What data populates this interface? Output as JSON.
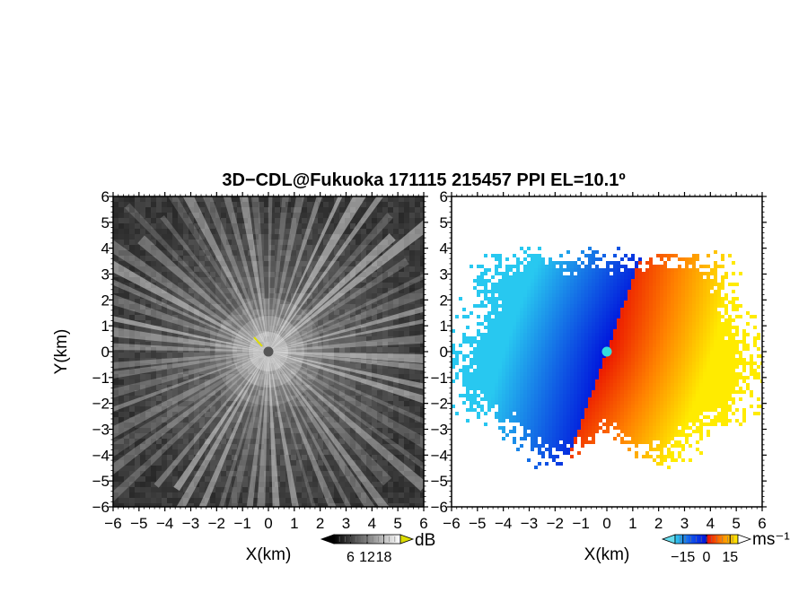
{
  "chart_data": [
    {
      "type": "heatmap",
      "panel": "reflectivity",
      "title": "3D−CDL@Fukuoka 171115 215457 PPI EL=10.1º",
      "xlabel": "X(km)",
      "ylabel": "Y(km)",
      "xlim": [
        -6,
        6
      ],
      "ylim": [
        -6,
        6
      ],
      "x_ticks": [
        -6,
        -5,
        -4,
        -3,
        -2,
        -1,
        0,
        1,
        2,
        3,
        4,
        5,
        6
      ],
      "y_ticks": [
        -6,
        -5,
        -4,
        -3,
        -2,
        -1,
        0,
        1,
        2,
        3,
        4,
        5,
        6
      ],
      "colorbar": {
        "unit": "dB",
        "ticks": [
          6,
          12,
          18
        ],
        "range": [
          0,
          24
        ],
        "colormap": "grayscale"
      }
    },
    {
      "type": "heatmap",
      "panel": "doppler-velocity",
      "xlabel": "X(km)",
      "xlim": [
        -6,
        6
      ],
      "ylim": [
        -6,
        6
      ],
      "x_ticks": [
        -6,
        -5,
        -4,
        -3,
        -2,
        -1,
        0,
        1,
        2,
        3,
        4,
        5,
        6
      ],
      "y_ticks": [
        -6,
        -5,
        -4,
        -3,
        -2,
        -1,
        0,
        1,
        2,
        3,
        4,
        5,
        6
      ],
      "colorbar": {
        "unit": "ms⁻¹",
        "ticks": [
          -15,
          0,
          15
        ],
        "range": [
          -20,
          20
        ],
        "colormap": "cyan-blue-red-orange-yellow"
      }
    }
  ]
}
